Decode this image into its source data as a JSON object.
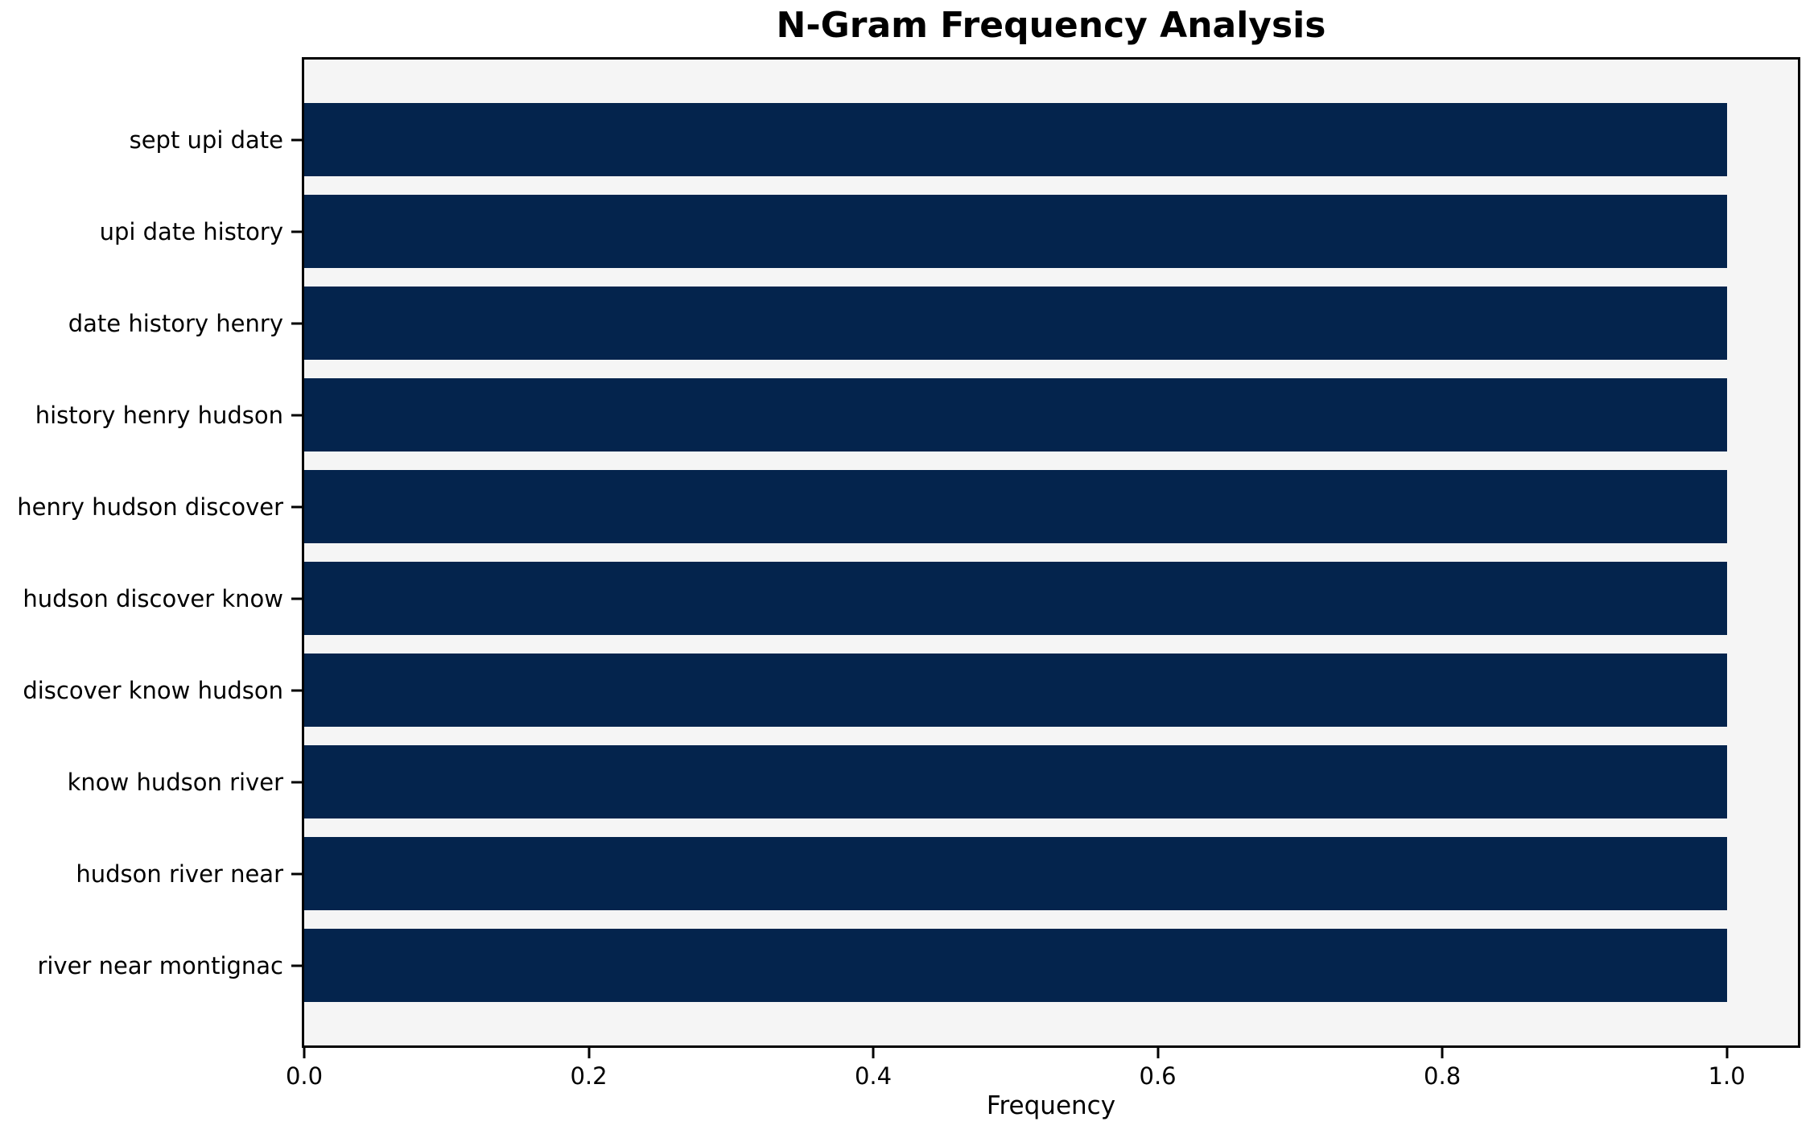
{
  "chart_data": {
    "type": "bar",
    "orientation": "horizontal",
    "title": "N-Gram Frequency Analysis",
    "xlabel": "Frequency",
    "ylabel": "",
    "categories": [
      "sept upi date",
      "upi date history",
      "date history henry",
      "history henry hudson",
      "henry hudson discover",
      "hudson discover know",
      "discover know hudson",
      "know hudson river",
      "hudson river near",
      "river near montignac"
    ],
    "values": [
      1.0,
      1.0,
      1.0,
      1.0,
      1.0,
      1.0,
      1.0,
      1.0,
      1.0,
      1.0
    ],
    "xlim": [
      0,
      1.05
    ],
    "xticks": [
      {
        "value": 0.0,
        "label": "0.0"
      },
      {
        "value": 0.2,
        "label": "0.2"
      },
      {
        "value": 0.4,
        "label": "0.4"
      },
      {
        "value": 0.6,
        "label": "0.6"
      },
      {
        "value": 0.8,
        "label": "0.8"
      },
      {
        "value": 1.0,
        "label": "1.0"
      }
    ],
    "grid": false,
    "legend": "none",
    "colors": {
      "bar": "#04244d",
      "plot_background": "#f5f5f5",
      "figure_background": "#ffffff",
      "axis": "#000000",
      "text": "#000000"
    }
  }
}
